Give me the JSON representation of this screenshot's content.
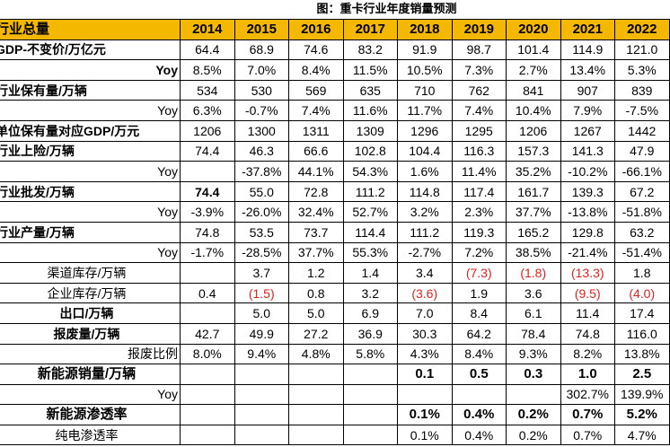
{
  "title": "图：重卡行业年度销量预测",
  "header": {
    "label": "行业总量",
    "years": [
      "2014",
      "2015",
      "2016",
      "2017",
      "2018",
      "2019",
      "2020",
      "2021",
      "2022"
    ]
  },
  "rows": [
    {
      "label": "GDP-不变价/万亿元",
      "align": "left",
      "bold": true,
      "values": [
        "64.4",
        "68.9",
        "74.6",
        "83.2",
        "91.9",
        "98.7",
        "101.4",
        "114.9",
        "121.0"
      ]
    },
    {
      "label": "Yoy",
      "align": "right",
      "bold": true,
      "values": [
        "8.5%",
        "7.0%",
        "8.4%",
        "11.5%",
        "10.5%",
        "7.3%",
        "2.7%",
        "13.4%",
        "5.3%"
      ]
    },
    {
      "label": "行业保有量/万辆",
      "align": "left",
      "bold": true,
      "values": [
        "534",
        "530",
        "569",
        "635",
        "710",
        "762",
        "841",
        "907",
        "839"
      ]
    },
    {
      "label": "Yoy",
      "align": "right",
      "bold": false,
      "values": [
        "6.3%",
        "-0.7%",
        "7.4%",
        "11.6%",
        "11.7%",
        "7.4%",
        "10.4%",
        "7.9%",
        "-7.5%"
      ]
    },
    {
      "label": "单位保有量对应GDP/万元",
      "align": "left",
      "bold": true,
      "values": [
        "1206",
        "1300",
        "1311",
        "1309",
        "1296",
        "1295",
        "1206",
        "1267",
        "1442"
      ]
    },
    {
      "label": "行业上险/万辆",
      "align": "left",
      "bold": true,
      "values": [
        "74.4",
        "46.3",
        "66.6",
        "102.8",
        "104.4",
        "116.3",
        "157.3",
        "141.3",
        "47.9"
      ]
    },
    {
      "label": "Yoy",
      "align": "right",
      "bold": false,
      "values": [
        "",
        "-37.8%",
        "44.1%",
        "54.3%",
        "1.6%",
        "11.4%",
        "35.2%",
        "-10.2%",
        "-66.1%"
      ]
    },
    {
      "label": "行业批发/万辆",
      "align": "left",
      "bold": true,
      "boldFirst": true,
      "values": [
        "74.4",
        "55.0",
        "72.8",
        "111.2",
        "114.8",
        "117.4",
        "161.7",
        "139.3",
        "67.2"
      ]
    },
    {
      "label": "Yoy",
      "align": "right",
      "bold": false,
      "values": [
        "-3.9%",
        "-26.0%",
        "32.4%",
        "52.7%",
        "3.2%",
        "2.3%",
        "37.7%",
        "-13.8%",
        "-51.8%"
      ]
    },
    {
      "label": "行业产量/万辆",
      "align": "left",
      "bold": true,
      "values": [
        "74.8",
        "53.5",
        "73.7",
        "114.4",
        "111.2",
        "119.3",
        "165.2",
        "129.8",
        "63.2"
      ]
    },
    {
      "label": "Yoy",
      "align": "right",
      "bold": false,
      "values": [
        "-1.7%",
        "-28.5%",
        "37.7%",
        "55.3%",
        "-2.7%",
        "7.2%",
        "38.5%",
        "-21.4%",
        "-51.4%"
      ]
    },
    {
      "label": "渠道库存/万辆",
      "align": "center",
      "bold": false,
      "values": [
        "",
        "3.7",
        "1.2",
        "1.4",
        "3.4",
        "(7.3)",
        "(1.8)",
        "(13.3)",
        "1.8"
      ],
      "red": [
        5,
        6,
        7
      ]
    },
    {
      "label": "企业库存/万辆",
      "align": "center",
      "bold": false,
      "values": [
        "0.4",
        "(1.5)",
        "0.8",
        "3.2",
        "(3.6)",
        "1.9",
        "3.6",
        "(9.5)",
        "(4.0)"
      ],
      "red": [
        1,
        4,
        7,
        8
      ]
    },
    {
      "label": "出口/万辆",
      "align": "center",
      "bold": true,
      "values": [
        "",
        "5.0",
        "5.0",
        "6.9",
        "7.0",
        "8.4",
        "6.1",
        "11.4",
        "17.4"
      ]
    },
    {
      "label": "报废量/万辆",
      "align": "center",
      "bold": true,
      "values": [
        "42.7",
        "49.9",
        "27.2",
        "36.9",
        "30.3",
        "64.2",
        "78.4",
        "74.8",
        "116.0"
      ]
    },
    {
      "label": "报废比例",
      "align": "right",
      "bold": false,
      "values": [
        "8.0%",
        "9.4%",
        "4.8%",
        "5.8%",
        "4.3%",
        "8.4%",
        "9.3%",
        "8.2%",
        "13.8%"
      ]
    },
    {
      "label": "新能源销量/万辆",
      "align": "center",
      "bold": true,
      "boldValues": true,
      "values": [
        "",
        "",
        "",
        "",
        "0.1",
        "0.5",
        "0.3",
        "1.0",
        "2.5"
      ]
    },
    {
      "label": "Yoy",
      "align": "right",
      "bold": false,
      "values": [
        "",
        "",
        "",
        "",
        "",
        "",
        "",
        "302.7%",
        "139.9%"
      ]
    },
    {
      "label": "新能源渗透率",
      "align": "center",
      "bold": true,
      "boldValues": true,
      "values": [
        "",
        "",
        "",
        "",
        "0.1%",
        "0.4%",
        "0.2%",
        "0.7%",
        "5.2%"
      ]
    },
    {
      "label": "纯电渗透率",
      "align": "center",
      "bold": false,
      "values": [
        "",
        "",
        "",
        "",
        "0.1%",
        "0.4%",
        "0.2%",
        "0.7%",
        "4.7%"
      ]
    }
  ]
}
